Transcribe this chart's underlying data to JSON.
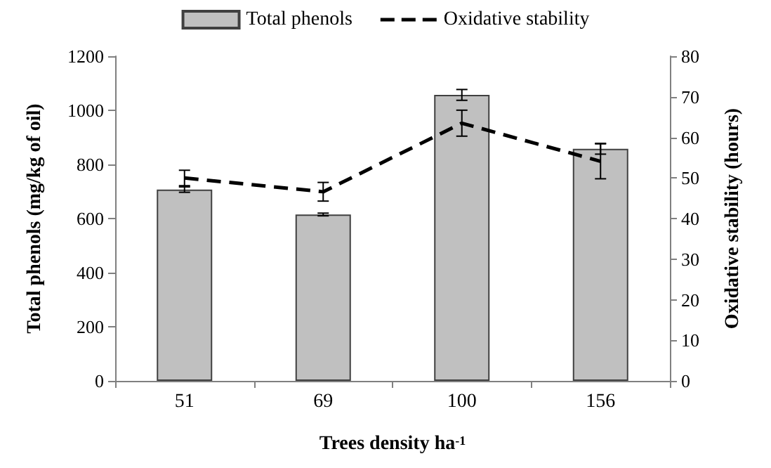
{
  "chart_data": {
    "type": "bar",
    "xlabel": "Trees density ha$^{-1}$",
    "ylabel": "Total phenols (mg/kg of oil)",
    "y2label": "Oxidative stability (hours)",
    "categories": [
      "51",
      "69",
      "100",
      "156"
    ],
    "series": [
      {
        "name": "Total phenols",
        "color": "#c0c0c0",
        "values": [
          707,
          615,
          1057,
          858
        ],
        "errors": [
          10,
          5,
          20,
          20
        ]
      },
      {
        "name": "Oxidative stability",
        "type": "line",
        "axis": "y2",
        "color": "#000000",
        "line_style": "dashed",
        "marker": "none",
        "values": [
          50.0,
          46.6,
          63.5,
          54.1
        ],
        "errors": [
          1.9,
          2.3,
          3.2,
          4.3
        ]
      }
    ],
    "ylim": [
      0,
      1200
    ],
    "yticks": [
      0,
      200,
      400,
      600,
      800,
      1000,
      1200
    ],
    "y2lim": [
      0,
      80
    ],
    "y2ticks": [
      0,
      10,
      20,
      30,
      40,
      50,
      60,
      70,
      80
    ],
    "grid": false,
    "legend": "top"
  }
}
